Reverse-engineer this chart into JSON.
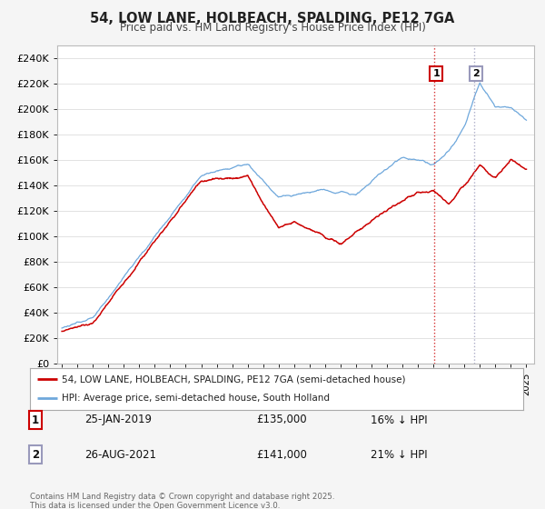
{
  "title": "54, LOW LANE, HOLBEACH, SPALDING, PE12 7GA",
  "subtitle": "Price paid vs. HM Land Registry's House Price Index (HPI)",
  "ylim": [
    0,
    250000
  ],
  "yticks": [
    0,
    20000,
    40000,
    60000,
    80000,
    100000,
    120000,
    140000,
    160000,
    180000,
    200000,
    220000,
    240000
  ],
  "ytick_labels": [
    "£0",
    "£20K",
    "£40K",
    "£60K",
    "£80K",
    "£100K",
    "£120K",
    "£140K",
    "£160K",
    "£180K",
    "£200K",
    "£220K",
    "£240K"
  ],
  "hpi_color": "#6fa8dc",
  "price_color": "#cc0000",
  "marker1_x": 2019.07,
  "marker2_x": 2021.65,
  "marker1_price": 135000,
  "marker2_price": 141000,
  "table_row1": [
    "1",
    "25-JAN-2019",
    "£135,000",
    "16% ↓ HPI"
  ],
  "table_row2": [
    "2",
    "26-AUG-2021",
    "£141,000",
    "21% ↓ HPI"
  ],
  "legend_label1": "54, LOW LANE, HOLBEACH, SPALDING, PE12 7GA (semi-detached house)",
  "legend_label2": "HPI: Average price, semi-detached house, South Holland",
  "footer": "Contains HM Land Registry data © Crown copyright and database right 2025.\nThis data is licensed under the Open Government Licence v3.0.",
  "bg_color": "#f5f5f5",
  "plot_bg": "#ffffff",
  "xlim_left": 1994.7,
  "xlim_right": 2025.5
}
